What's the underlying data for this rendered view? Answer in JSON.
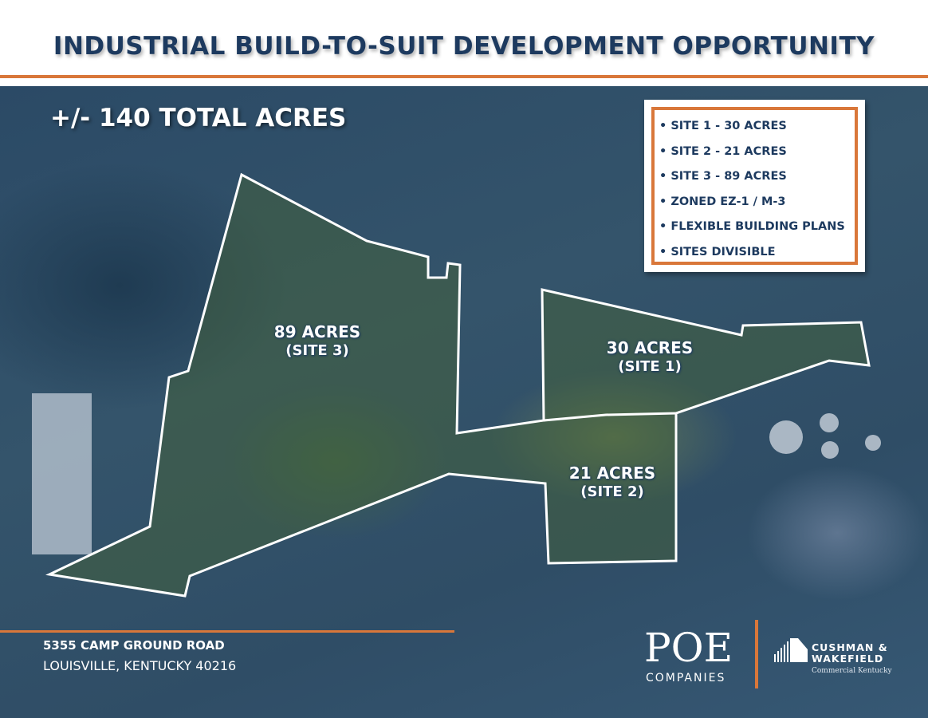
{
  "header": {
    "title": "INDUSTRIAL BUILD-TO-SUIT DEVELOPMENT OPPORTUNITY"
  },
  "map": {
    "total_acres": "+/- 140 TOTAL ACRES",
    "sites": [
      {
        "acres": "89 ACRES",
        "site": "(SITE 3)"
      },
      {
        "acres": "30 ACRES",
        "site": "(SITE 1)"
      },
      {
        "acres": "21 ACRES",
        "site": "(SITE 2)"
      }
    ],
    "features": [
      "• SITE 1 - 30 ACRES",
      "• SITE 2 - 21 ACRES",
      "• SITE 3 - 89 ACRES",
      "• ZONED EZ-1 / M-3",
      "• FLEXIBLE BUILDING PLANS",
      "• SITES DIVISIBLE"
    ]
  },
  "address": {
    "line1": "5355 CAMP GROUND ROAD",
    "line2": "LOUISVILLE, KENTUCKY 40216"
  },
  "logos": {
    "poe": "POE",
    "poe_sub": "COMPANIES",
    "cw_line1": "CUSHMAN &",
    "cw_line2": "WAKEFIELD",
    "cw_sub": "Commercial Kentucky"
  },
  "colors": {
    "accent": "#d9773a",
    "navy": "#1d3a5f"
  }
}
